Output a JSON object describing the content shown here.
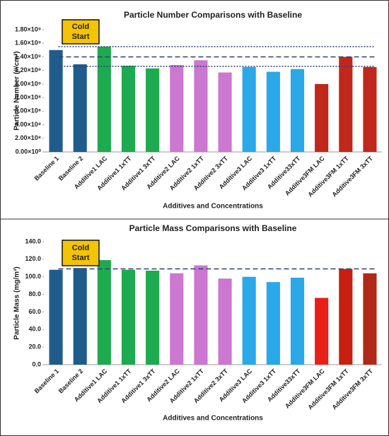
{
  "chart_data": [
    {
      "type": "bar",
      "title": "Particle Number Comparisons with Baseline",
      "ylabel": "Particle Number (#/cm³)",
      "xlabel": "Additives and Concentrations",
      "annotation": "Cold Start",
      "categories": [
        "Baseline 1",
        "Baseline 2",
        "Additive1 LAC",
        "Additive1 1xTT",
        "Additive1 3xTT",
        "Additive2 LAC",
        "Additive2 1xTT",
        "Additive2 3xTT",
        "Additive3 LAC",
        "Additive3 1xTT",
        "Additive33xTT",
        "Additive3FM LAC",
        "Additive3FM 1xTT",
        "Additive3FM 3xTT"
      ],
      "values": [
        1500000000,
        1290000000,
        1550000000,
        1270000000,
        1230000000,
        1280000000,
        1350000000,
        1170000000,
        1250000000,
        1180000000,
        1220000000,
        1000000000,
        1400000000,
        1250000000
      ],
      "colors": [
        "#1f5c8b",
        "#1f5c8b",
        "#1eaa50",
        "#1eaa50",
        "#1eaa50",
        "#cc77d0",
        "#cc77d0",
        "#cc77d0",
        "#2aa8e8",
        "#2aa8e8",
        "#2aa8e8",
        "#c0281c",
        "#c0281c",
        "#c0281c"
      ],
      "ylim": [
        0,
        1800000000
      ],
      "yticks": [
        {
          "value": 0,
          "label": "0.00×10⁰"
        },
        {
          "value": 200000000,
          "label": "2.00×10⁸"
        },
        {
          "value": 400000000,
          "label": "4.00×10⁸"
        },
        {
          "value": 600000000,
          "label": "6.00×10⁸"
        },
        {
          "value": 800000000,
          "label": "8.00×10⁸"
        },
        {
          "value": 1000000000,
          "label": "1.00×10⁹"
        },
        {
          "value": 1200000000,
          "label": "1.20×10⁹"
        },
        {
          "value": 1400000000,
          "label": "1.40×10⁹"
        },
        {
          "value": 1600000000,
          "label": "1.60×10⁹"
        },
        {
          "value": 1800000000,
          "label": "1.80×10⁹"
        }
      ],
      "ref_lines": [
        {
          "value": 1550000000,
          "style": "dotted"
        },
        {
          "value": 1400000000,
          "style": "dashed"
        },
        {
          "value": 1260000000,
          "style": "dotted"
        }
      ]
    },
    {
      "type": "bar",
      "title": "Particle Mass Comparisons with Baseline",
      "ylabel": "Particle Mass (mg/m³)",
      "xlabel": "Additives and Concentrations",
      "annotation": "Cold Start",
      "categories": [
        "Baseline 1",
        "Baseline 2",
        "Additive1 LAC",
        "Additive1 1xTT",
        "Additive1 3xTT",
        "Additive2 LAC",
        "Additive2 1xTT",
        "Additive2 3xTT",
        "Additive3 LAC",
        "Additive3 1xTT",
        "Additive33xTT",
        "Additive3FM LAC",
        "Additive3FM 1xTT",
        "Additive3FM 3xTT"
      ],
      "values": [
        108,
        110,
        119,
        108,
        107,
        104,
        113,
        98,
        100,
        94,
        99,
        76,
        109,
        104
      ],
      "colors": [
        "#1f5c8b",
        "#1f5c8b",
        "#1eaa50",
        "#1eaa50",
        "#1eaa50",
        "#cc77d0",
        "#cc77d0",
        "#cc77d0",
        "#2aa8e8",
        "#2aa8e8",
        "#2aa8e8",
        "#e8201a",
        "#c82010",
        "#b02818"
      ],
      "ylim": [
        0,
        140
      ],
      "yticks": [
        {
          "value": 0,
          "label": "0.0"
        },
        {
          "value": 20,
          "label": "20.0"
        },
        {
          "value": 40,
          "label": "40.0"
        },
        {
          "value": 60,
          "label": "60.0"
        },
        {
          "value": 80,
          "label": "80.0"
        },
        {
          "value": 100,
          "label": "100.0"
        },
        {
          "value": 120,
          "label": "120.0"
        },
        {
          "value": 140,
          "label": "140.0"
        }
      ],
      "ref_lines": [
        {
          "value": 109,
          "style": "dashed"
        }
      ]
    }
  ]
}
